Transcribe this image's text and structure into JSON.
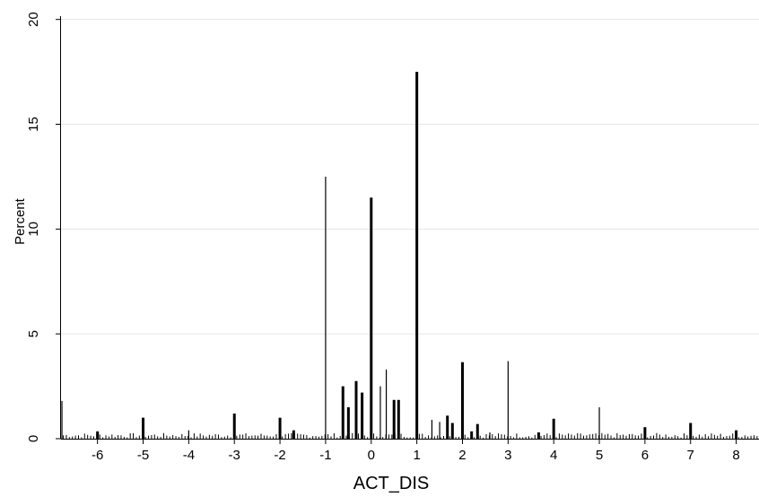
{
  "chart_data": {
    "type": "bar",
    "title": "",
    "xlabel": "ACT_DIS",
    "ylabel": "Percent",
    "xlim": [
      -6.8,
      8.5
    ],
    "ylim": [
      0,
      20.5
    ],
    "grid": true,
    "x_ticks": [
      -6,
      -5,
      -4,
      -3,
      -2,
      -1,
      0,
      1,
      2,
      3,
      4,
      5,
      6,
      7,
      8
    ],
    "y_ticks": [
      0,
      5,
      10,
      15,
      20
    ],
    "bars": [
      {
        "x": -6.78,
        "y": 1.8,
        "w": "thin"
      },
      {
        "x": -6.0,
        "y": 0.35,
        "w": "thick"
      },
      {
        "x": -5.0,
        "y": 1.0,
        "w": "thick"
      },
      {
        "x": -4.0,
        "y": 0.4,
        "w": "thin"
      },
      {
        "x": -3.0,
        "y": 1.2,
        "w": "thick"
      },
      {
        "x": -2.0,
        "y": 1.0,
        "w": "thick"
      },
      {
        "x": -1.7,
        "y": 0.4,
        "w": "thick"
      },
      {
        "x": -1.0,
        "y": 12.5,
        "w": "thin"
      },
      {
        "x": -0.62,
        "y": 2.5,
        "w": "thick"
      },
      {
        "x": -0.5,
        "y": 1.5,
        "w": "thick"
      },
      {
        "x": -0.33,
        "y": 2.75,
        "w": "thick"
      },
      {
        "x": -0.2,
        "y": 2.2,
        "w": "thick"
      },
      {
        "x": 0.0,
        "y": 11.5,
        "w": "thick"
      },
      {
        "x": 0.2,
        "y": 2.5,
        "w": "thin"
      },
      {
        "x": 0.33,
        "y": 3.3,
        "w": "thin"
      },
      {
        "x": 0.5,
        "y": 1.85,
        "w": "thick"
      },
      {
        "x": 0.6,
        "y": 1.85,
        "w": "thick"
      },
      {
        "x": 1.0,
        "y": 17.5,
        "w": "thick"
      },
      {
        "x": 1.33,
        "y": 0.9,
        "w": "thin"
      },
      {
        "x": 1.5,
        "y": 0.8,
        "w": "thin"
      },
      {
        "x": 1.67,
        "y": 1.1,
        "w": "thick"
      },
      {
        "x": 1.78,
        "y": 0.75,
        "w": "thick"
      },
      {
        "x": 2.0,
        "y": 3.65,
        "w": "thick"
      },
      {
        "x": 2.2,
        "y": 0.35,
        "w": "thick"
      },
      {
        "x": 2.33,
        "y": 0.7,
        "w": "thick"
      },
      {
        "x": 2.6,
        "y": 0.3,
        "w": "thin"
      },
      {
        "x": 3.0,
        "y": 3.7,
        "w": "thin"
      },
      {
        "x": 3.67,
        "y": 0.3,
        "w": "thick"
      },
      {
        "x": 4.0,
        "y": 0.95,
        "w": "thick"
      },
      {
        "x": 5.0,
        "y": 1.5,
        "w": "thin"
      },
      {
        "x": 6.0,
        "y": 0.55,
        "w": "thick"
      },
      {
        "x": 7.0,
        "y": 0.75,
        "w": "thick"
      },
      {
        "x": 8.0,
        "y": 0.4,
        "w": "thick"
      }
    ]
  }
}
